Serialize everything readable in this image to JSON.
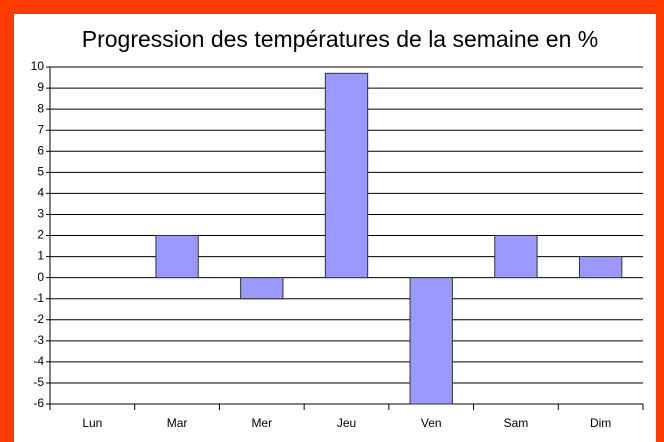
{
  "chart_data": {
    "type": "bar",
    "title": "Progression des températures de la semaine en %",
    "categories": [
      "Lun",
      "Mar",
      "Mer",
      "Jeu",
      "Ven",
      "Sam",
      "Dim"
    ],
    "values": [
      0,
      2,
      -1,
      9.7,
      -6,
      2,
      1
    ],
    "color": "#9999ff",
    "ylim": [
      -6,
      10
    ],
    "yticks": [
      -6,
      -5,
      -4,
      -3,
      -2,
      -1,
      0,
      1,
      2,
      3,
      4,
      5,
      6,
      7,
      8,
      9,
      10
    ],
    "grid": true
  }
}
